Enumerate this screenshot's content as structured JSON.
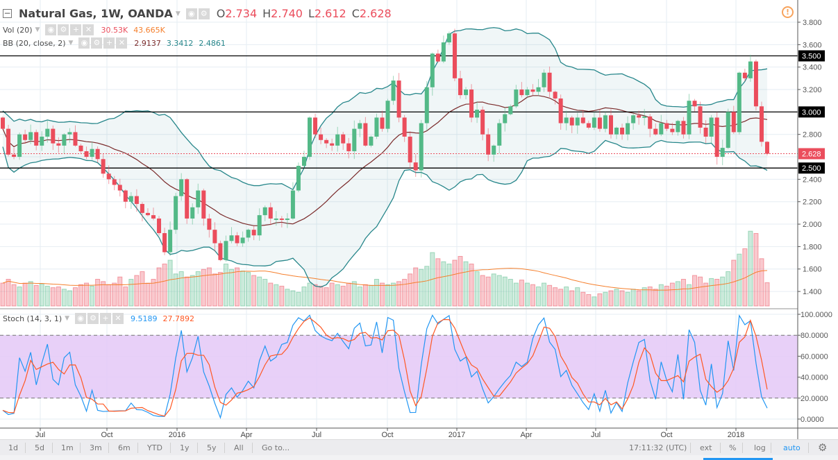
{
  "header": {
    "symbol": "Natural Gas, 1W, OANDA",
    "o_label": "O",
    "o": "2.734",
    "h_label": "H",
    "h": "2.740",
    "l_label": "L",
    "l": "2.612",
    "c_label": "C",
    "c": "2.628"
  },
  "indicators": {
    "vol": {
      "name": "Vol (20)",
      "v1": "30.53K",
      "v2": "43.665K"
    },
    "bb": {
      "name": "BB (20, close, 2)",
      "basis": "2.9137",
      "upper": "3.3412",
      "lower": "2.4861"
    },
    "stoch": {
      "name": "Stoch (14, 3, 1)",
      "k": "9.5189",
      "d": "27.7892"
    }
  },
  "price_axis": {
    "labels": [
      "3.800",
      "3.600",
      "3.400",
      "3.200",
      "2.800",
      "2.400",
      "2.200",
      "2.000",
      "1.800",
      "1.600",
      "1.400"
    ],
    "levels": [
      "3.500",
      "3.000",
      "2.500"
    ],
    "last": "2.628"
  },
  "stoch_axis": {
    "labels": [
      "100.0000",
      "80.0000",
      "60.0000",
      "40.0000",
      "20.0000",
      "0.0000"
    ]
  },
  "time_axis": {
    "labels": [
      "Jul",
      "Oct",
      "2016",
      "Apr",
      "Jul",
      "Oct",
      "2017",
      "Apr",
      "Jul",
      "Oct",
      "2018"
    ]
  },
  "toolbar": {
    "left": [
      "1d",
      "5d",
      "1m",
      "3m",
      "6m",
      "YTD",
      "1y",
      "5y",
      "All",
      "Go to..."
    ],
    "time": "17:11:32 (UTC)",
    "right": [
      "ext",
      "%",
      "log",
      "auto"
    ]
  },
  "colors": {
    "up": "#53b987",
    "down": "#eb4d5c",
    "band": "#26868a",
    "basis": "#7a2a2a",
    "volma": "#f57f2c",
    "k": "#2196f3",
    "d": "#ff5722",
    "stochfill": "#e4c8f7"
  },
  "chart_data": {
    "type": "candlestick",
    "title": "Natural Gas, 1W, OANDA",
    "ylim": [
      1.3,
      3.9
    ],
    "levels": [
      3.5,
      3.0,
      2.5
    ],
    "closes": [
      2.85,
      2.62,
      2.6,
      2.8,
      2.75,
      2.82,
      2.7,
      2.78,
      2.85,
      2.72,
      2.7,
      2.8,
      2.82,
      2.7,
      2.65,
      2.6,
      2.67,
      2.58,
      2.45,
      2.4,
      2.35,
      2.3,
      2.2,
      2.25,
      2.18,
      2.1,
      2.08,
      2.05,
      1.92,
      1.75,
      1.95,
      2.25,
      2.4,
      2.05,
      2.15,
      2.3,
      2.05,
      1.95,
      1.83,
      1.68,
      1.85,
      1.9,
      1.83,
      1.88,
      1.95,
      1.9,
      2.08,
      2.15,
      2.05,
      2.05,
      2.04,
      2.05,
      2.3,
      2.52,
      2.6,
      2.95,
      2.8,
      2.75,
      2.72,
      2.7,
      2.8,
      2.72,
      2.65,
      2.85,
      2.9,
      2.7,
      2.78,
      2.95,
      2.85,
      3.1,
      3.28,
      2.95,
      2.78,
      2.55,
      2.48,
      2.9,
      3.22,
      3.52,
      3.45,
      3.62,
      3.7,
      3.3,
      3.15,
      3.2,
      2.95,
      3.02,
      2.8,
      2.62,
      2.7,
      2.9,
      2.98,
      3.05,
      3.2,
      3.15,
      3.2,
      3.18,
      3.22,
      3.35,
      3.18,
      3.12,
      2.9,
      2.95,
      2.88,
      2.95,
      2.9,
      2.86,
      2.95,
      2.85,
      2.97,
      2.8,
      2.86,
      2.8,
      2.9,
      2.97,
      2.95,
      2.96,
      2.85,
      2.8,
      2.9,
      2.85,
      2.82,
      2.92,
      2.8,
      3.1,
      3.05,
      2.86,
      2.78,
      2.95,
      2.6,
      2.68,
      3.0,
      2.82,
      3.35,
      3.3,
      3.45,
      3.05,
      2.734,
      2.628
    ],
    "volume_k": [
      30,
      35,
      28,
      25,
      30,
      32,
      27,
      29,
      26,
      24,
      25,
      22,
      20,
      24,
      28,
      30,
      26,
      35,
      32,
      28,
      30,
      38,
      25,
      35,
      40,
      45,
      30,
      35,
      50,
      55,
      60,
      42,
      45,
      38,
      40,
      45,
      48,
      50,
      42,
      44,
      55,
      48,
      50,
      46,
      44,
      40,
      38,
      35,
      30,
      28,
      26,
      22,
      20,
      18,
      25,
      30,
      28,
      26,
      24,
      30,
      28,
      26,
      30,
      32,
      25,
      28,
      27,
      35,
      30,
      28,
      30,
      32,
      35,
      42,
      50,
      48,
      52,
      70,
      62,
      58,
      55,
      60,
      65,
      58,
      55,
      45,
      40,
      38,
      42,
      40,
      38,
      35,
      30,
      34,
      30,
      28,
      25,
      30,
      27,
      24,
      22,
      25,
      20,
      24,
      18,
      15,
      12,
      16,
      18,
      20,
      22,
      20,
      18,
      22,
      20,
      24,
      25,
      22,
      28,
      26,
      30,
      32,
      35,
      28,
      40,
      38,
      30,
      36,
      35,
      38,
      45,
      60,
      68,
      75,
      98,
      95,
      62,
      30.53
    ],
    "stoch_range": [
      0,
      100
    ],
    "stoch_bands": [
      20,
      80
    ]
  }
}
